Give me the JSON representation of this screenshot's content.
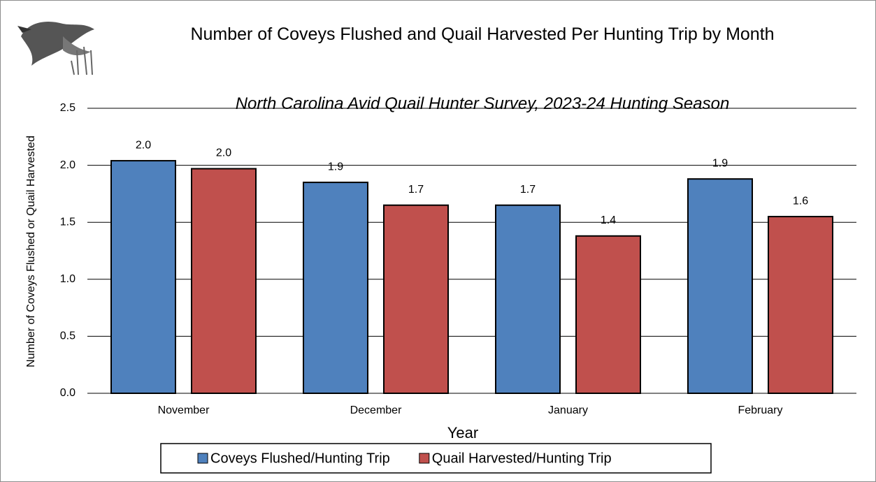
{
  "chart_data": {
    "type": "bar",
    "title": "Number of Coveys Flushed and Quail Harvested Per Hunting Trip by Month",
    "subtitle": "North Carolina Avid Quail Hunter Survey, 2023-24 Hunting Season",
    "x_label": "Year",
    "y_label": "Number of Coveys Flushed or Quail Harvested",
    "categories": [
      "November",
      "December",
      "January",
      "February"
    ],
    "series": [
      {
        "name": "Coveys Flushed/Hunting Trip",
        "color": "#4f81bd",
        "values": [
          2.04,
          1.85,
          1.65,
          1.88
        ],
        "value_labels": [
          "2.0",
          "1.9",
          "1.7",
          "1.9"
        ]
      },
      {
        "name": "Quail Harvested/Hunting Trip",
        "color": "#c0504d",
        "values": [
          1.97,
          1.65,
          1.38,
          1.55
        ],
        "value_labels": [
          "2.0",
          "1.7",
          "1.4",
          "1.6"
        ]
      }
    ],
    "ylim": [
      0,
      2.5
    ],
    "yticks": [
      {
        "value": 0,
        "label": "0.0"
      },
      {
        "value": 0.5,
        "label": "0.5"
      },
      {
        "value": 1,
        "label": "1.0"
      },
      {
        "value": 1.5,
        "label": "1.5"
      },
      {
        "value": 2,
        "label": "2.0"
      },
      {
        "value": 2.5,
        "label": "2.5"
      }
    ],
    "grid": true,
    "legend": "bottom"
  }
}
